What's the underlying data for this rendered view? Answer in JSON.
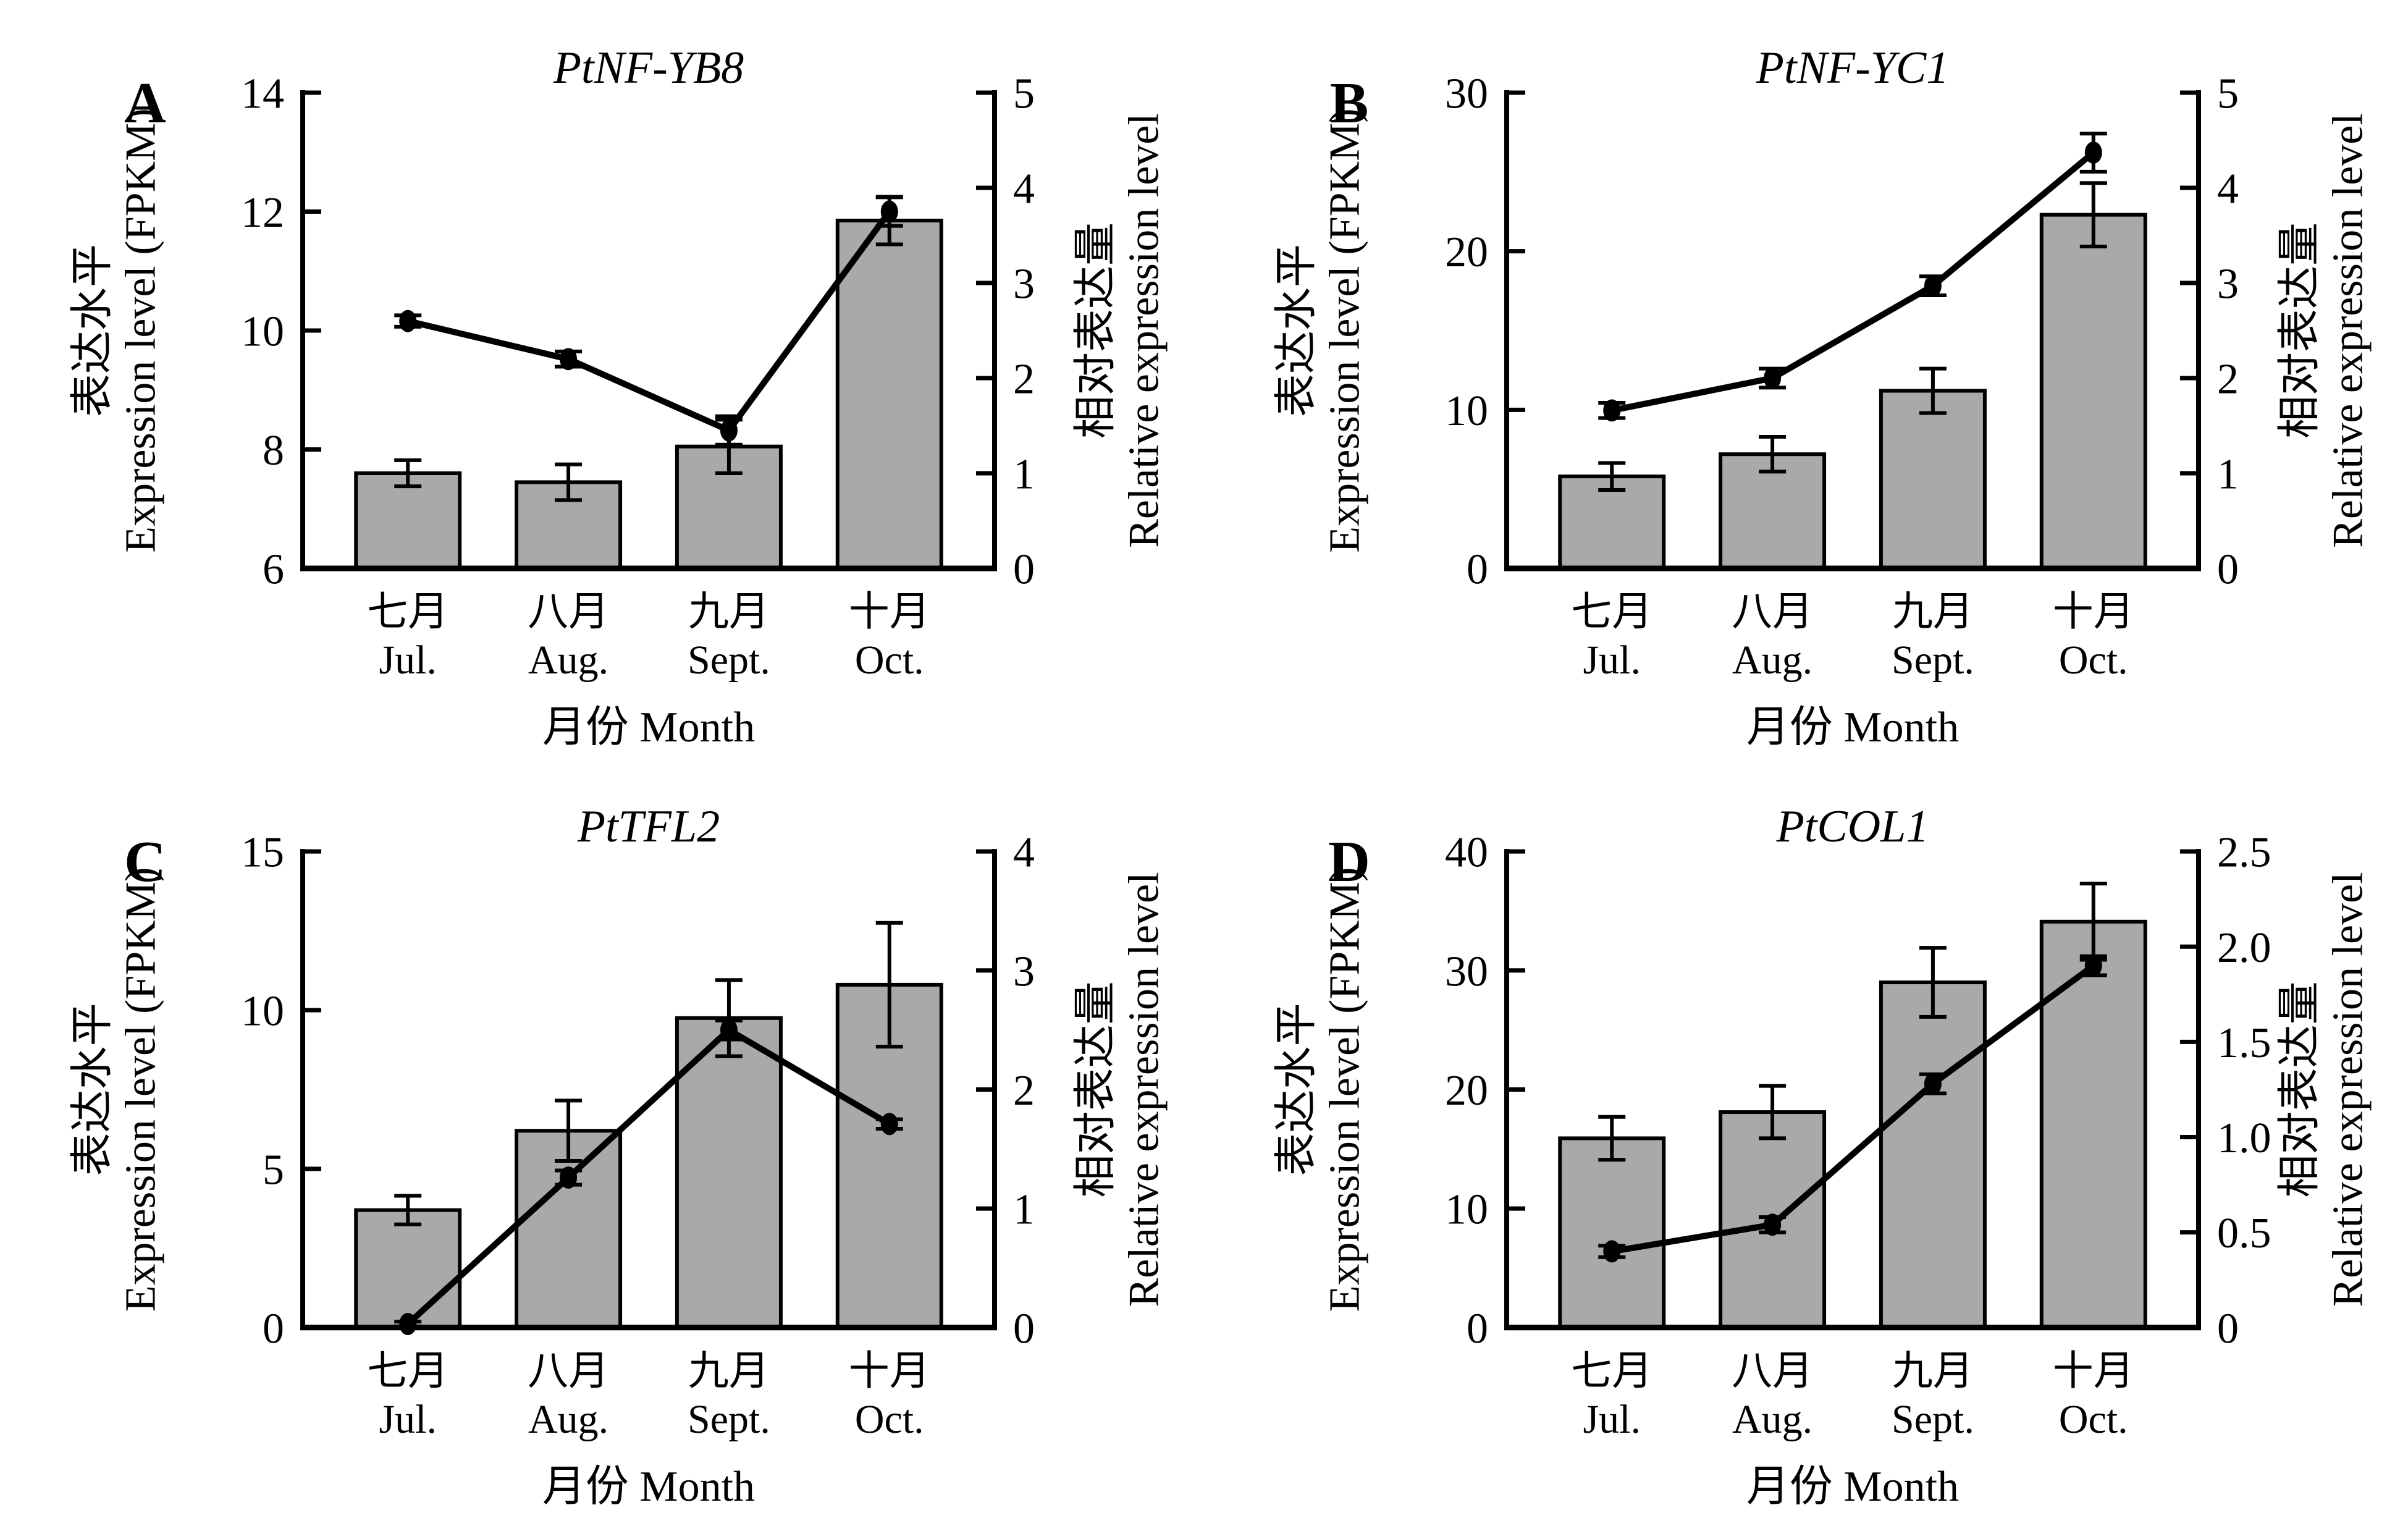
{
  "figure": {
    "colors": {
      "background": "#ffffff",
      "bar_fill": "#a9a9a9",
      "bar_edge": "#000000",
      "line_color": "#000000",
      "axis_color": "#000000",
      "text_color": "#000000"
    }
  },
  "chart_data": [
    {
      "panel": "A",
      "type": "bar+line dual-axis",
      "title": "PtNF-YB8",
      "categories": [
        {
          "zh": "七月",
          "en": "Jul."
        },
        {
          "zh": "八月",
          "en": "Aug."
        },
        {
          "zh": "九月",
          "en": "Sept."
        },
        {
          "zh": "十月",
          "en": "Oct."
        }
      ],
      "xlabel": {
        "zh": "月份",
        "en": "Month"
      },
      "left_axis": {
        "label_zh": "表达水平",
        "label_en": "Expression level (FPKM)",
        "lim": [
          6,
          14
        ],
        "ticks": [
          "6",
          "8",
          "10",
          "12",
          "14"
        ]
      },
      "right_axis": {
        "label_zh": "相对表达量",
        "label_en": "Relative expression level",
        "lim": [
          0,
          5
        ],
        "ticks": [
          "0",
          "1",
          "2",
          "3",
          "4",
          "5"
        ]
      },
      "series": [
        {
          "name": "表达水平 Expression level (FPKM)",
          "type": "bar",
          "axis": "left",
          "values": [
            7.6,
            7.45,
            8.05,
            11.85
          ],
          "errors": [
            0.22,
            0.3,
            0.45,
            0.4
          ]
        },
        {
          "name": "相对表达量 Relative expression level",
          "type": "line",
          "axis": "right",
          "values": [
            2.6,
            2.2,
            1.45,
            3.75
          ],
          "errors": [
            0.06,
            0.08,
            0.15,
            0.15
          ]
        }
      ]
    },
    {
      "panel": "B",
      "type": "bar+line dual-axis",
      "title": "PtNF-YC1",
      "categories": [
        {
          "zh": "七月",
          "en": "Jul."
        },
        {
          "zh": "八月",
          "en": "Aug."
        },
        {
          "zh": "九月",
          "en": "Sept."
        },
        {
          "zh": "十月",
          "en": "Oct."
        }
      ],
      "xlabel": {
        "zh": "月份",
        "en": "Month"
      },
      "left_axis": {
        "label_zh": "表达水平",
        "label_en": "Expression level (FPKM)",
        "lim": [
          0,
          30
        ],
        "ticks": [
          "0",
          "10",
          "20",
          "30"
        ]
      },
      "right_axis": {
        "label_zh": "相对表达量",
        "label_en": "Relative expression level",
        "lim": [
          0,
          5
        ],
        "ticks": [
          "0",
          "1",
          "2",
          "3",
          "4",
          "5"
        ]
      },
      "series": [
        {
          "name": "表达水平 Expression level (FPKM)",
          "type": "bar",
          "axis": "left",
          "values": [
            5.8,
            7.2,
            11.2,
            22.3
          ],
          "errors": [
            0.85,
            1.1,
            1.4,
            2.0
          ]
        },
        {
          "name": "相对表达量 Relative expression level",
          "type": "line",
          "axis": "right",
          "values": [
            1.66,
            2.0,
            2.97,
            4.37
          ],
          "errors": [
            0.08,
            0.1,
            0.1,
            0.2
          ]
        }
      ]
    },
    {
      "panel": "C",
      "type": "bar+line dual-axis",
      "title": "PtTFL2",
      "categories": [
        {
          "zh": "七月",
          "en": "Jul."
        },
        {
          "zh": "八月",
          "en": "Aug."
        },
        {
          "zh": "九月",
          "en": "Sept."
        },
        {
          "zh": "十月",
          "en": "Oct."
        }
      ],
      "xlabel": {
        "zh": "月份",
        "en": "Month"
      },
      "left_axis": {
        "label_zh": "表达水平",
        "label_en": "Expression level (FPKM)",
        "lim": [
          0,
          15
        ],
        "ticks": [
          "0",
          "5",
          "10",
          "15"
        ]
      },
      "right_axis": {
        "label_zh": "相对表达量",
        "label_en": "Relative expression level",
        "lim": [
          0,
          4
        ],
        "ticks": [
          "0",
          "1",
          "2",
          "3",
          "4"
        ]
      },
      "series": [
        {
          "name": "表达水平 Expression level (FPKM)",
          "type": "bar",
          "axis": "left",
          "values": [
            3.7,
            6.2,
            9.75,
            10.8
          ],
          "errors": [
            0.45,
            0.95,
            1.2,
            1.95
          ]
        },
        {
          "name": "相对表达量 Relative expression level",
          "type": "line",
          "axis": "right",
          "values": [
            0.03,
            1.26,
            2.5,
            1.71
          ],
          "errors": [
            0.02,
            0.06,
            0.08,
            0.04
          ]
        }
      ]
    },
    {
      "panel": "D",
      "type": "bar+line dual-axis",
      "title": "PtCOL1",
      "categories": [
        {
          "zh": "七月",
          "en": "Jul."
        },
        {
          "zh": "八月",
          "en": "Aug."
        },
        {
          "zh": "九月",
          "en": "Sept."
        },
        {
          "zh": "十月",
          "en": "Oct."
        }
      ],
      "xlabel": {
        "zh": "月份",
        "en": "Month"
      },
      "left_axis": {
        "label_zh": "表达水平",
        "label_en": "Expression level (FPKM)",
        "lim": [
          0,
          40
        ],
        "ticks": [
          "0",
          "10",
          "20",
          "30",
          "40"
        ]
      },
      "right_axis": {
        "label_zh": "相对表达量",
        "label_en": "Relative expression level",
        "lim": [
          0,
          2.5
        ],
        "ticks": [
          "0",
          "0.5",
          "1.0",
          "1.5",
          "2.0",
          "2.5"
        ]
      },
      "series": [
        {
          "name": "表达水平 Expression level (FPKM)",
          "type": "bar",
          "axis": "left",
          "values": [
            15.9,
            18.1,
            29.0,
            34.1
          ],
          "errors": [
            1.8,
            2.2,
            2.9,
            3.2
          ]
        },
        {
          "name": "相对表达量 Relative expression level",
          "type": "line",
          "axis": "right",
          "values": [
            0.4,
            0.54,
            1.28,
            1.9
          ],
          "errors": [
            0.03,
            0.04,
            0.05,
            0.05
          ]
        }
      ]
    }
  ]
}
